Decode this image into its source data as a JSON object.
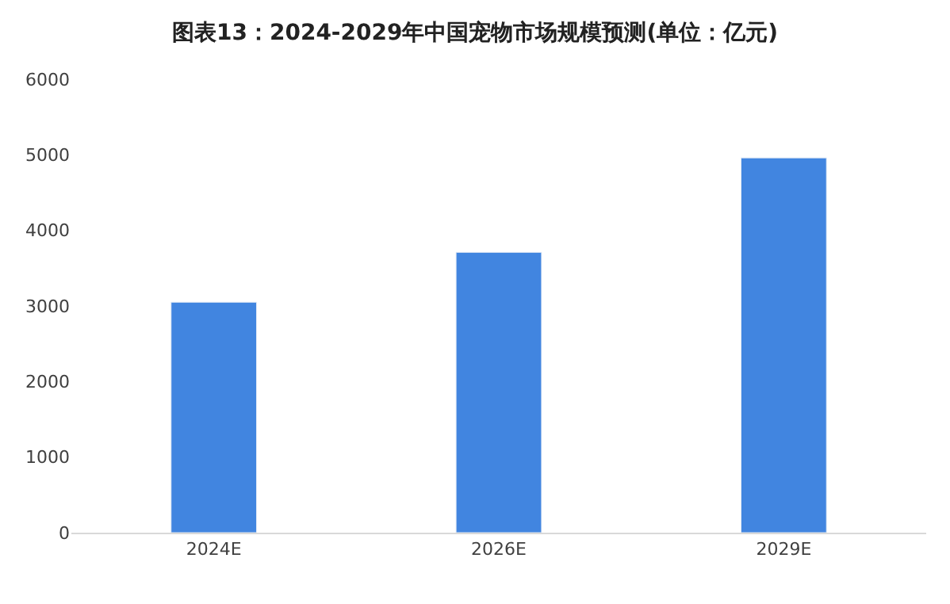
{
  "chart_data": {
    "type": "bar",
    "title": "图表13：2024-2029年中国宠物市场规模预测(单位：亿元)",
    "categories": [
      "2024E",
      "2026E",
      "2029E"
    ],
    "values": [
      3050,
      3710,
      4960
    ],
    "color": "#4185e0",
    "ylim": [
      0,
      6000
    ],
    "yticks": [
      0,
      1000,
      2000,
      3000,
      4000,
      5000,
      6000
    ],
    "grid": false
  }
}
